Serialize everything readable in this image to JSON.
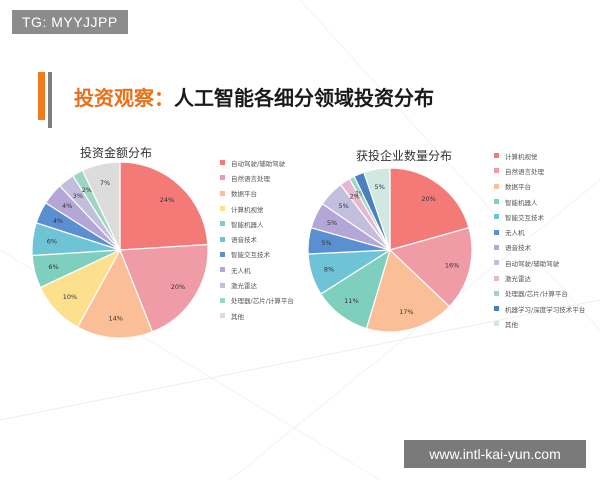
{
  "watermarks": {
    "top": "TG: MYYJJPP",
    "bottom": "www.intl-kai-yun.com"
  },
  "slide": {
    "title_highlight": "投资观察：",
    "title_rest": "人工智能各细分领域投资分布"
  },
  "chart_data": [
    {
      "type": "pie",
      "title": "投资金额分布",
      "categories": [
        "自动驾驶/辅助驾驶",
        "自然语言处理",
        "数据平台",
        "计算机视觉",
        "智能机器人",
        "语音技术",
        "智能交互技术",
        "无人机",
        "激光雷达",
        "处理器/芯片/计算平台",
        "其他"
      ],
      "values": [
        24,
        20,
        14,
        10,
        6,
        6,
        4,
        4,
        3,
        2,
        7
      ],
      "labels": [
        "24%",
        "20%",
        "14%",
        "10%",
        "6%",
        "6%",
        "4%",
        "4%",
        "3%",
        "2%",
        "7%"
      ],
      "colors": [
        "#f47a78",
        "#ef9ca6",
        "#fbbf98",
        "#fde08e",
        "#7ecfbd",
        "#6fc3d6",
        "#5a8fd2",
        "#b4a6d6",
        "#c2bfdc",
        "#9fd6c2",
        "#dcdcdc"
      ],
      "legend_position": "right"
    },
    {
      "type": "pie",
      "title": "获投企业数量分布",
      "categories": [
        "计算机视觉",
        "自然语言处理",
        "数据平台",
        "智能机器人",
        "智能交互技术",
        "无人机",
        "语音技术",
        "自动驾驶/辅助驾驶",
        "激光雷达",
        "处理器/芯片/计算平台",
        "机器学习/深度学习技术平台",
        "其他"
      ],
      "values": [
        20,
        16,
        17,
        11,
        8,
        5,
        5,
        5,
        2,
        1,
        2,
        5
      ],
      "labels": [
        "20%",
        "16%",
        "17%",
        "11%",
        "8%",
        "5%",
        "5%",
        "5%",
        "2%",
        "1%",
        "",
        "5%"
      ],
      "colors": [
        "#f47a78",
        "#ef9ca6",
        "#fbbf98",
        "#7ecfbd",
        "#6fc3d6",
        "#5a8fd2",
        "#b4a6d6",
        "#c2bfdc",
        "#e6b8cf",
        "#9fd6c2",
        "#4a7fc0",
        "#cfe8e0"
      ],
      "legend_position": "right"
    }
  ]
}
